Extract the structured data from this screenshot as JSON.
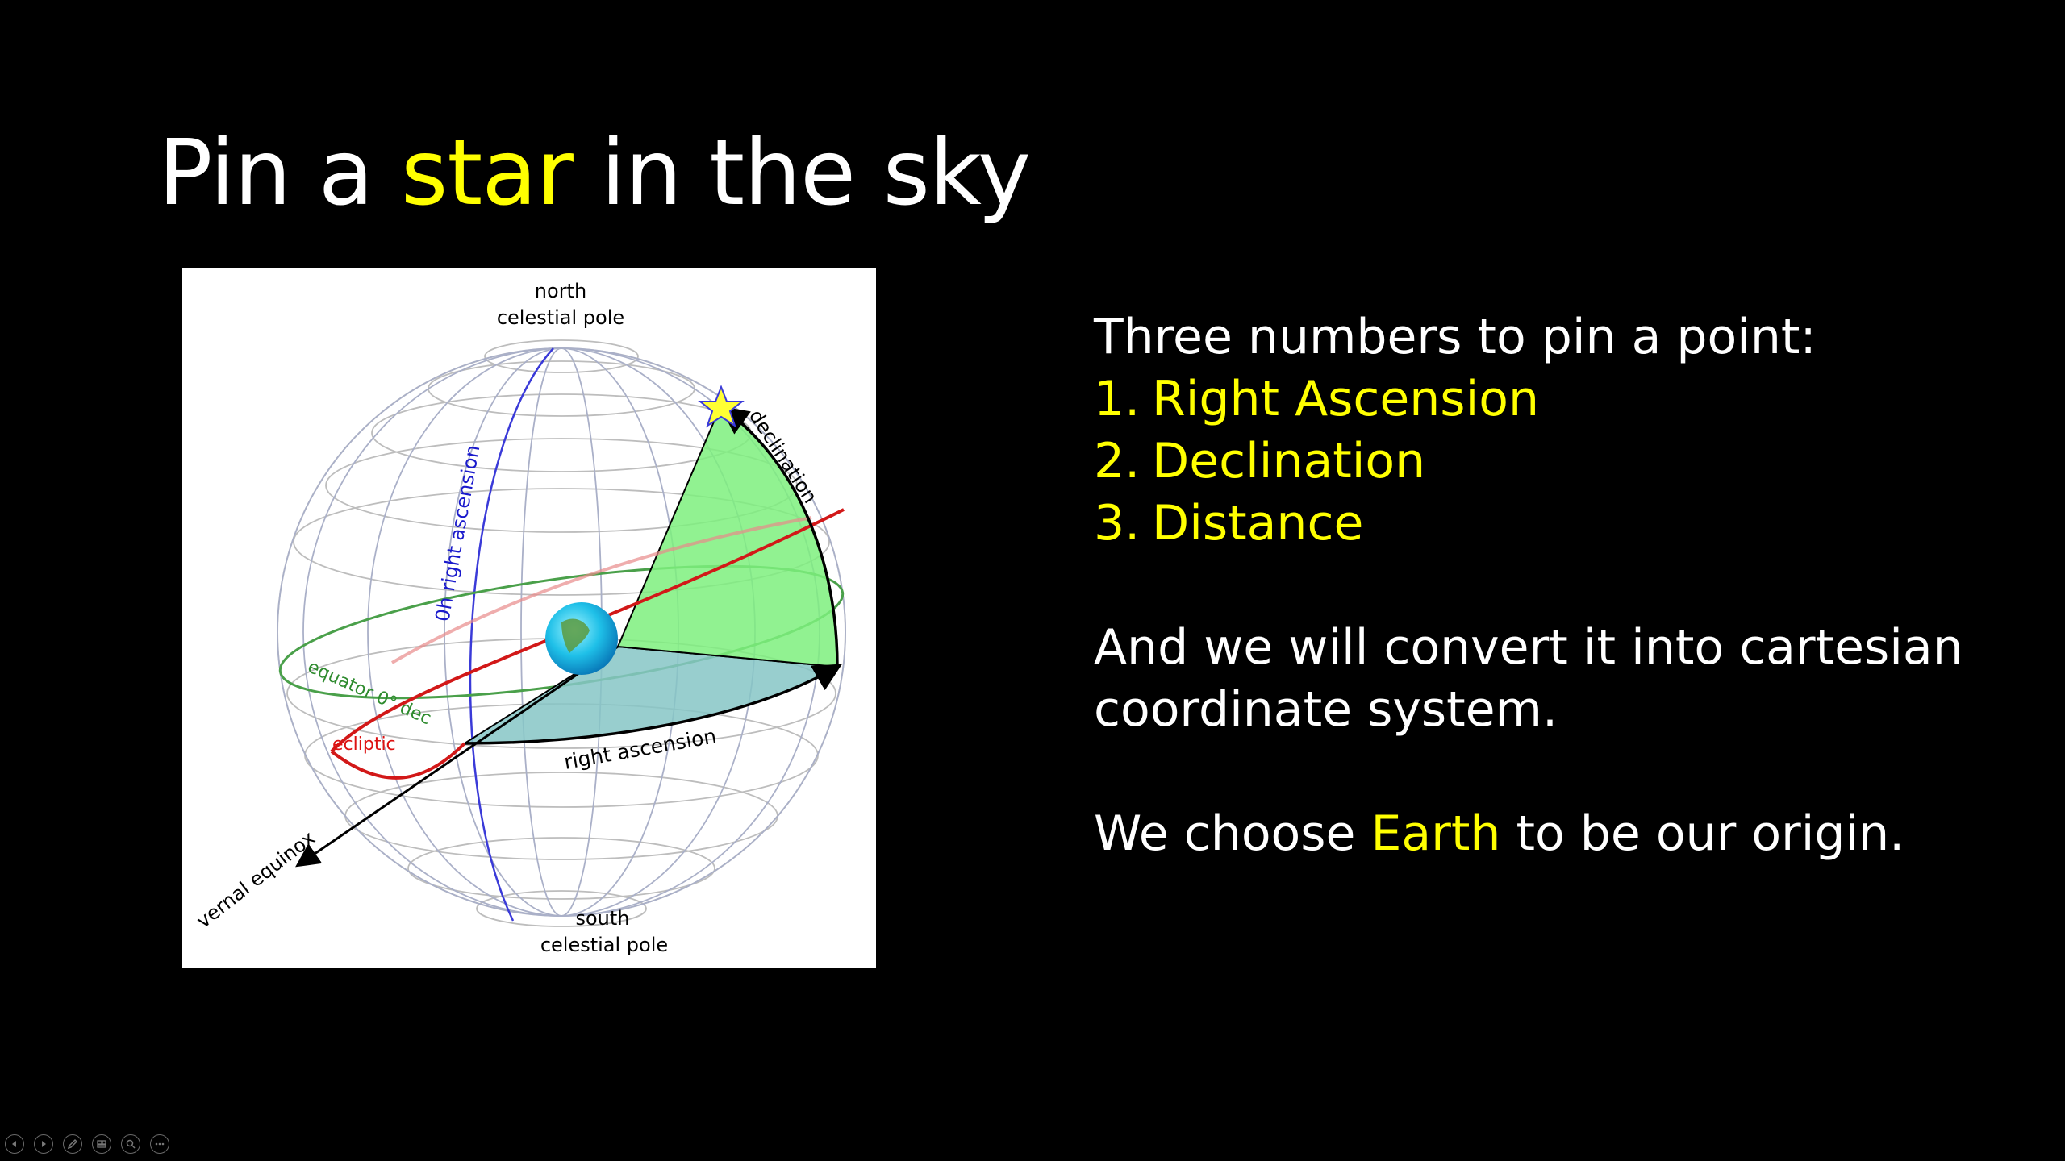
{
  "slide": {
    "title": {
      "before": "Pin a ",
      "highlight": "star",
      "after": " in the sky"
    },
    "body": {
      "intro": "Three numbers to pin a point:",
      "items": [
        {
          "num": "1.",
          "label": "Right Ascension"
        },
        {
          "num": "2.",
          "label": "Declination"
        },
        {
          "num": "3.",
          "label": "Distance"
        }
      ],
      "paragraph_line1": "And we will convert it into cartesian",
      "paragraph_line2": "coordinate system.",
      "origin_before": "We choose ",
      "origin_highlight": "Earth",
      "origin_after": " to be our origin."
    }
  },
  "diagram": {
    "labels": {
      "north_line1": "north",
      "north_line2": "celestial pole",
      "south_line1": "south",
      "south_line2": "celestial pole",
      "ra_zero": "0h right ascension",
      "declination": "declination",
      "equator": "equator  0° dec",
      "ecliptic": "ecliptic",
      "right_ascension": "right ascension",
      "vernal_equinox": "vernal equinox"
    }
  },
  "player_controls": [
    "previous-icon",
    "next-icon",
    "pen-icon",
    "slides-icon",
    "zoom-icon",
    "more-icon"
  ],
  "colors": {
    "background": "#000000",
    "text": "#ffffff",
    "highlight": "#ffff00",
    "ra_line": "#1a1acc",
    "equator": "#2e8b2e",
    "ecliptic": "#dd1111",
    "wedge_green": "#7ef07e",
    "wedge_blue": "#86c6c6"
  }
}
